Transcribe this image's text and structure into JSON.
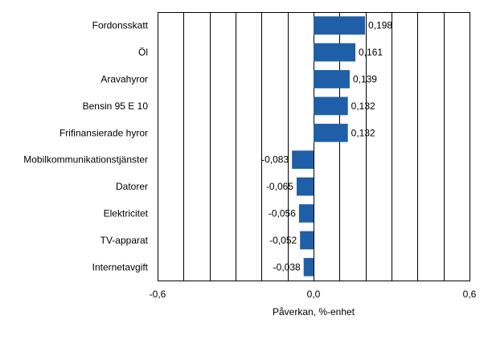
{
  "chart_data": {
    "type": "bar",
    "orientation": "horizontal",
    "categories": [
      "Fordonsskatt",
      "Öl",
      "Aravahyror",
      "Bensin 95 E 10",
      "Frifinansierade hyror",
      "Mobilkommunikationstjänster",
      "Datorer",
      "Elektricitet",
      "TV-apparat",
      "Internetavgift"
    ],
    "values": [
      0.198,
      0.161,
      0.139,
      0.132,
      0.132,
      -0.083,
      -0.065,
      -0.056,
      -0.052,
      -0.038
    ],
    "value_labels": [
      "0,198",
      "0,161",
      "0,139",
      "0,132",
      "0,132",
      "-0,083",
      "-0,065",
      "-0,056",
      "-0,052",
      "-0,038"
    ],
    "xlim": [
      -0.6,
      0.6
    ],
    "x_ticks": [
      {
        "value": -0.6,
        "label": "-0,6"
      },
      {
        "value": 0.0,
        "label": "0,0"
      },
      {
        "value": 0.6,
        "label": "0,6"
      }
    ],
    "gridlines": [
      -0.5,
      -0.4,
      -0.3,
      -0.2,
      -0.1,
      0.1,
      0.2,
      0.3,
      0.4,
      0.5
    ],
    "xlabel": "Påverkan, %-enhet",
    "ylabel": "",
    "title": "",
    "grid": true,
    "bar_color": "#1f5fa8",
    "grid_color": "#000000"
  }
}
